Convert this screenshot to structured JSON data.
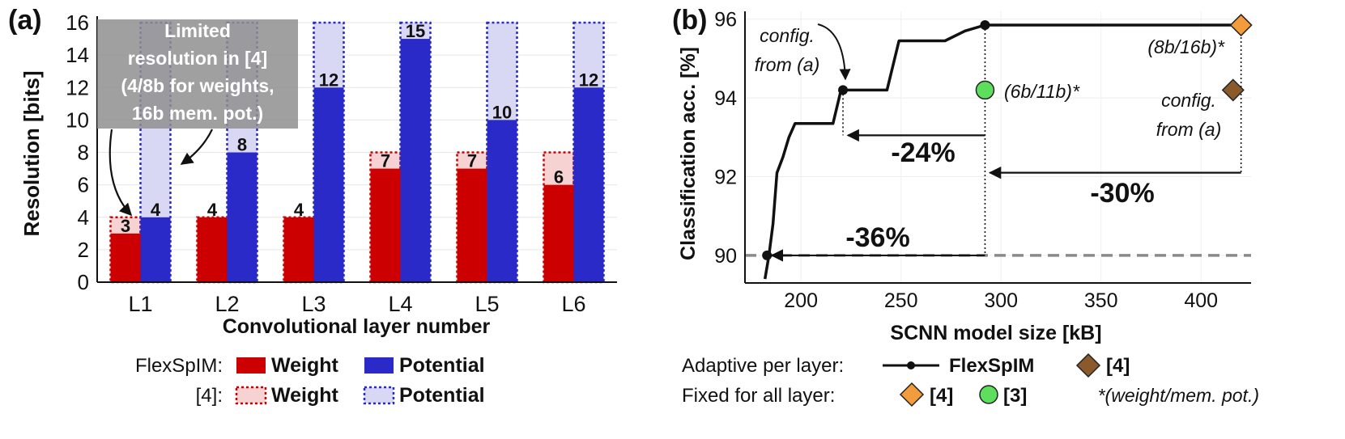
{
  "panel_a_label": "(a)",
  "panel_b_label": "(b)",
  "chart_data": [
    {
      "type": "bar",
      "title": "",
      "xlabel": "Convolutional layer number",
      "ylabel": "Resolution [bits]",
      "ylim": [
        0,
        16
      ],
      "yticks": [
        0,
        2,
        4,
        6,
        8,
        10,
        12,
        14,
        16
      ],
      "grid": true,
      "categories": [
        "L1",
        "L2",
        "L3",
        "L4",
        "L5",
        "L6"
      ],
      "series": [
        {
          "name": "FlexSpIM Weight",
          "style": "solid",
          "color": "#cc0000",
          "values": [
            3,
            4,
            4,
            7,
            7,
            6
          ],
          "labels": [
            "3",
            "4",
            "4",
            "7",
            "7",
            "6"
          ]
        },
        {
          "name": "FlexSpIM Potential",
          "style": "solid",
          "color": "#2a2ac8",
          "values": [
            4,
            8,
            12,
            15,
            10,
            12
          ],
          "labels": [
            "4",
            "8",
            "12",
            "15",
            "10",
            "12"
          ]
        },
        {
          "name": "[4] Weight",
          "style": "dotted",
          "color": "#cc0000",
          "values": [
            4,
            4,
            4,
            8,
            8,
            8
          ]
        },
        {
          "name": "[4] Potential",
          "style": "dotted",
          "color": "#2a2ac8",
          "values": [
            16,
            16,
            16,
            16,
            16,
            16
          ]
        }
      ],
      "annotation": {
        "lines": [
          "Limited",
          "resolution in [4]",
          "(4/8b for weights,",
          "16b mem. pot.)"
        ]
      },
      "legend": {
        "row1_label": "FlexSpIM:",
        "row2_label": "[4]:",
        "weight": "Weight",
        "potential": "Potential"
      }
    },
    {
      "type": "line",
      "title": "",
      "xlabel": "SCNN model size [kB]",
      "ylabel": "Classification acc. [%]",
      "xlim": [
        172,
        425
      ],
      "ylim": [
        89.3,
        96.2
      ],
      "xticks": [
        200,
        250,
        300,
        350,
        400
      ],
      "yticks": [
        90,
        92,
        94,
        96
      ],
      "series": [
        {
          "name": "FlexSpIM",
          "x": [
            182,
            184,
            186,
            188,
            191,
            194,
            197,
            204,
            216,
            220,
            236,
            243,
            249,
            260,
            272,
            282,
            292,
            420
          ],
          "y": [
            89.4,
            90.0,
            90.8,
            92.1,
            92.5,
            93.0,
            93.35,
            93.35,
            93.35,
            94.2,
            94.2,
            94.2,
            95.45,
            95.45,
            95.45,
            95.7,
            95.85,
            95.85
          ]
        }
      ],
      "markers": [
        {
          "name": "FlexSpIM point 90",
          "x": 183,
          "y": 90.0
        },
        {
          "name": "FlexSpIM point config",
          "x": 221,
          "y": 94.2
        },
        {
          "name": "FlexSpIM point max",
          "x": 292,
          "y": 95.85
        },
        {
          "name": "[3] fixed",
          "x": 292,
          "y": 94.2,
          "label": "(6b/11b)*"
        },
        {
          "name": "[4] fixed",
          "x": 420,
          "y": 95.85,
          "label": "(8b/16b)*"
        },
        {
          "name": "[4] adaptive",
          "x": 416,
          "y": 94.2
        }
      ],
      "reference_line": {
        "y": 90.0
      },
      "annotations": {
        "config_a_left": [
          "config.",
          "from (a)"
        ],
        "config_a_right": [
          "config.",
          "from (a)"
        ],
        "reductions": [
          {
            "text": "-24%",
            "y": 93.05,
            "x_from": 292,
            "x_to": 221
          },
          {
            "text": "-30%",
            "y": 92.1,
            "x_from": 420,
            "x_to": 292
          },
          {
            "text": "-36%",
            "y": 90.0,
            "x_from": 292,
            "x_to": 183
          }
        ]
      },
      "legend": {
        "adaptive_label": "Adaptive per layer:",
        "fixed_label": "Fixed for all layer:",
        "flexspim": "FlexSpIM",
        "ref4": "[4]",
        "ref3": "[3]",
        "footnote": "*(weight/mem. pot.)"
      }
    }
  ]
}
